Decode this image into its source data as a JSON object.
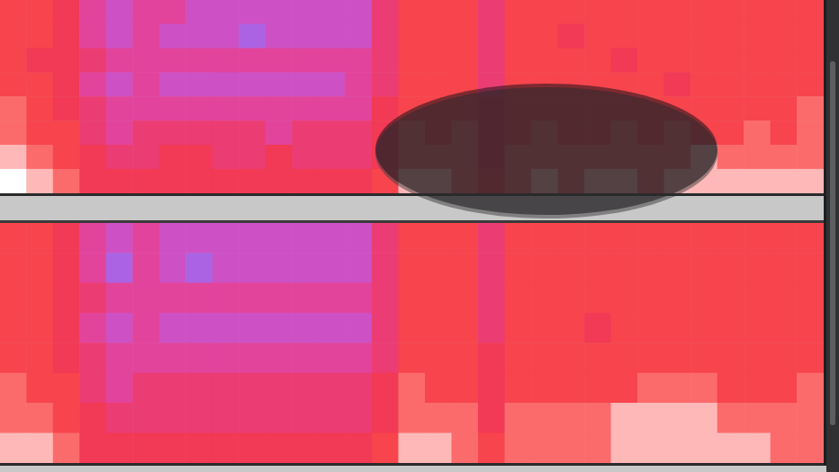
{
  "chart_data": [
    {
      "type": "heatmap",
      "tick_labels": false,
      "color_range": [
        0,
        10
      ],
      "cells": [
        [
          7,
          7,
          6,
          4,
          3,
          4,
          4,
          3,
          3,
          3,
          3,
          3,
          3,
          3,
          5,
          7,
          7,
          7,
          5,
          7,
          7,
          7,
          7,
          7,
          7,
          7,
          7,
          7,
          7,
          7,
          7
        ],
        [
          7,
          7,
          6,
          4,
          3,
          4,
          3,
          3,
          3,
          2,
          3,
          3,
          3,
          3,
          5,
          7,
          7,
          7,
          5,
          7,
          7,
          6,
          7,
          7,
          7,
          7,
          7,
          7,
          7,
          7,
          7
        ],
        [
          7,
          6,
          6,
          5,
          4,
          4,
          4,
          4,
          4,
          4,
          4,
          4,
          4,
          4,
          5,
          7,
          7,
          7,
          5,
          7,
          7,
          7,
          7,
          6,
          7,
          7,
          7,
          7,
          7,
          7,
          7
        ],
        [
          7,
          7,
          6,
          4,
          3,
          4,
          3,
          3,
          3,
          3,
          3,
          3,
          3,
          4,
          5,
          7,
          7,
          7,
          5,
          7,
          7,
          7,
          7,
          7,
          7,
          6,
          7,
          7,
          7,
          7,
          7
        ],
        [
          8,
          7,
          6,
          5,
          4,
          4,
          4,
          4,
          4,
          4,
          4,
          4,
          4,
          4,
          6,
          7,
          7,
          7,
          6,
          7,
          7,
          7,
          7,
          7,
          7,
          7,
          7,
          7,
          7,
          7,
          8
        ],
        [
          8,
          7,
          7,
          5,
          4,
          5,
          5,
          5,
          5,
          5,
          4,
          5,
          5,
          5,
          6,
          8,
          7,
          8,
          6,
          7,
          8,
          7,
          7,
          8,
          7,
          8,
          7,
          7,
          8,
          7,
          8
        ],
        [
          9,
          8,
          7,
          6,
          5,
          5,
          6,
          6,
          5,
          5,
          6,
          5,
          5,
          5,
          6,
          8,
          8,
          8,
          6,
          8,
          8,
          8,
          8,
          8,
          8,
          8,
          9,
          8,
          8,
          8,
          8
        ],
        [
          10,
          9,
          8,
          6,
          6,
          6,
          6,
          6,
          6,
          6,
          6,
          6,
          6,
          6,
          7,
          9,
          9,
          8,
          7,
          8,
          9,
          8,
          9,
          9,
          8,
          9,
          9,
          9,
          9,
          9,
          9
        ]
      ]
    },
    {
      "type": "heatmap",
      "tick_labels": false,
      "color_range": [
        0,
        10
      ],
      "cells": [
        [
          7,
          7,
          6,
          4,
          3,
          4,
          3,
          3,
          3,
          3,
          3,
          3,
          3,
          3,
          5,
          7,
          7,
          7,
          5,
          7,
          7,
          7,
          7,
          7,
          7,
          7,
          7,
          7,
          7,
          7,
          7
        ],
        [
          7,
          7,
          6,
          4,
          2,
          4,
          3,
          2,
          3,
          3,
          3,
          3,
          3,
          3,
          5,
          7,
          7,
          7,
          5,
          7,
          7,
          7,
          7,
          7,
          7,
          7,
          7,
          7,
          7,
          7,
          7
        ],
        [
          7,
          7,
          6,
          5,
          4,
          4,
          4,
          4,
          4,
          4,
          4,
          4,
          4,
          4,
          5,
          7,
          7,
          7,
          5,
          7,
          7,
          7,
          7,
          7,
          7,
          7,
          7,
          7,
          7,
          7,
          7
        ],
        [
          7,
          7,
          6,
          4,
          3,
          4,
          3,
          3,
          3,
          3,
          3,
          3,
          3,
          3,
          5,
          7,
          7,
          7,
          5,
          7,
          7,
          7,
          6,
          7,
          7,
          7,
          7,
          7,
          7,
          7,
          7
        ],
        [
          7,
          7,
          6,
          5,
          4,
          4,
          4,
          4,
          4,
          4,
          4,
          4,
          4,
          4,
          5,
          7,
          7,
          7,
          6,
          7,
          7,
          7,
          7,
          7,
          7,
          7,
          7,
          7,
          7,
          7,
          7
        ],
        [
          8,
          7,
          7,
          5,
          4,
          5,
          5,
          5,
          5,
          5,
          5,
          5,
          5,
          5,
          6,
          8,
          7,
          7,
          6,
          7,
          7,
          7,
          7,
          7,
          8,
          8,
          8,
          7,
          7,
          7,
          8
        ],
        [
          8,
          8,
          7,
          6,
          5,
          5,
          5,
          5,
          5,
          5,
          5,
          5,
          5,
          5,
          6,
          8,
          8,
          8,
          6,
          8,
          8,
          8,
          8,
          9,
          9,
          9,
          9,
          8,
          8,
          8,
          8
        ],
        [
          9,
          9,
          8,
          6,
          6,
          6,
          6,
          6,
          6,
          6,
          6,
          6,
          6,
          6,
          7,
          9,
          9,
          8,
          7,
          8,
          8,
          8,
          8,
          9,
          9,
          9,
          9,
          9,
          9,
          8,
          8
        ]
      ]
    }
  ]
}
